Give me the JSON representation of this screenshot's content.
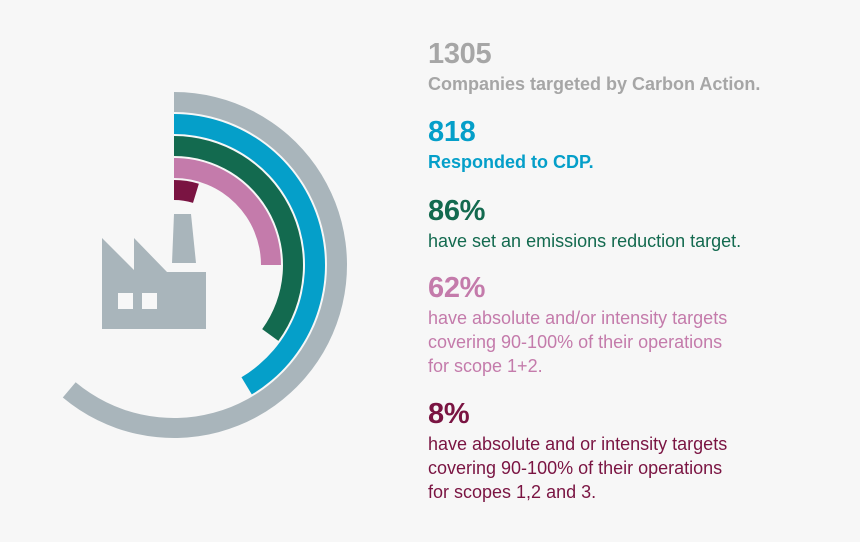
{
  "colors": {
    "background": "#f7f7f7",
    "grey": "#a9b5bb",
    "blue": "#059fc9",
    "green": "#136a4f",
    "pink": "#c47bab",
    "maroon": "#7a1442",
    "grey_text": "#a6a6a6"
  },
  "icons": {
    "factory": "factory-icon"
  },
  "stats": [
    {
      "value": "1305",
      "label_lines": [
        "Companies targeted by Carbon Action."
      ],
      "bold_label": true,
      "color": "#a6a6a6"
    },
    {
      "value": "818",
      "label_lines": [
        "Responded to CDP."
      ],
      "bold_label": true,
      "color": "#059fc9"
    },
    {
      "value": "86%",
      "label_lines": [
        "have set an emissions reduction target."
      ],
      "bold_label": false,
      "color": "#136a4f"
    },
    {
      "value": "62%",
      "label_lines": [
        "have absolute and/or intensity targets",
        "covering 90-100% of their operations",
        "for scope 1+2."
      ],
      "bold_label": false,
      "color": "#c47bab"
    },
    {
      "value": "8%",
      "label_lines": [
        "have absolute and or intensity targets",
        "covering 90-100% of their operations",
        "for scopes 1,2 and 3."
      ],
      "bold_label": false,
      "color": "#7a1442"
    }
  ],
  "chart_data": {
    "type": "radial-bar",
    "title": "",
    "center": [
      174,
      265
    ],
    "categories": [
      "Companies targeted by Carbon Action",
      "Responded to CDP",
      "Set an emissions reduction target",
      "Absolute and/or intensity targets covering 90-100% of operations for scope 1+2",
      "Absolute and or intensity targets covering 90-100% of operations for scopes 1,2 and 3"
    ],
    "values": [
      1305,
      818,
      "86%",
      "62%",
      "8%"
    ],
    "series": [
      {
        "name": "1305",
        "color": "#a9b5bb",
        "outer_radius": 173,
        "inner_radius": 153,
        "sweep_deg": 220
      },
      {
        "name": "818",
        "color": "#059fc9",
        "outer_radius": 151,
        "inner_radius": 131,
        "sweep_deg": 149
      },
      {
        "name": "86%",
        "color": "#136a4f",
        "outer_radius": 129,
        "inner_radius": 109,
        "sweep_deg": 126
      },
      {
        "name": "62%",
        "color": "#c47bab",
        "outer_radius": 107,
        "inner_radius": 87,
        "sweep_deg": 90
      },
      {
        "name": "8%",
        "color": "#7a1442",
        "outer_radius": 85,
        "inner_radius": 65,
        "sweep_deg": 17
      }
    ],
    "legend": "right"
  }
}
